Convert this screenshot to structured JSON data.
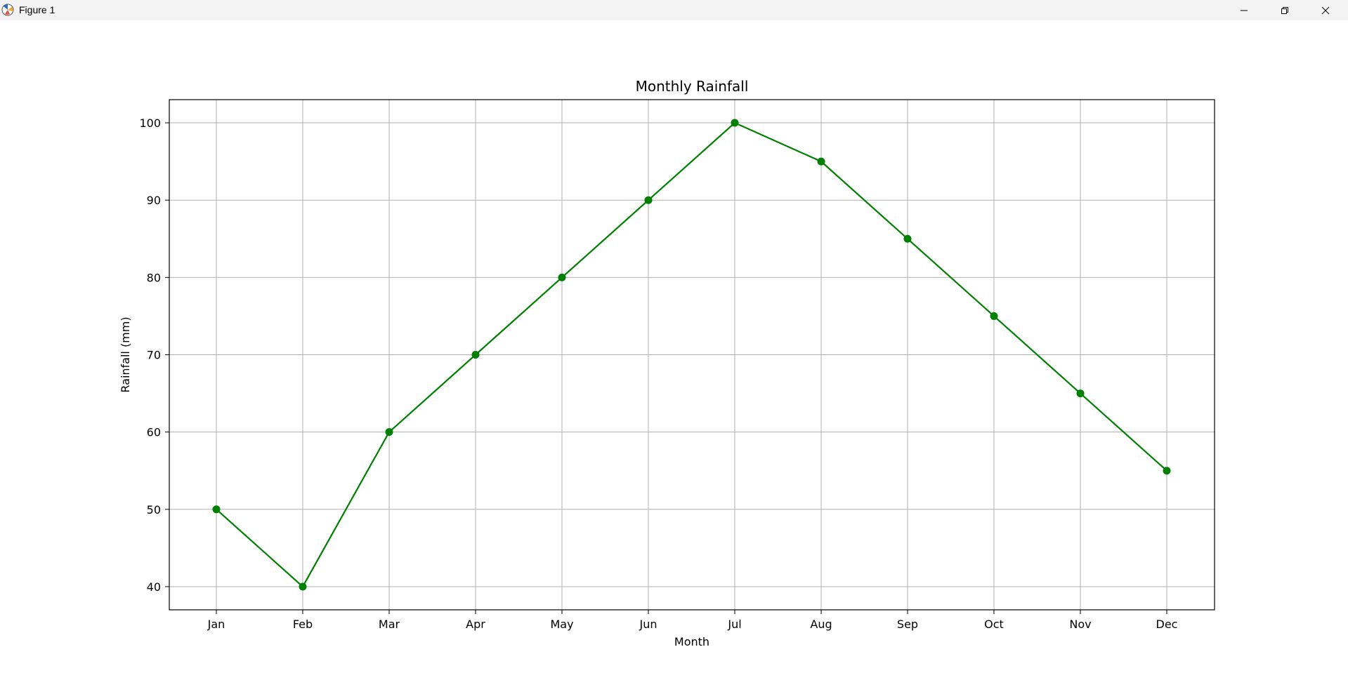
{
  "window": {
    "title": "Figure 1"
  },
  "icons": {
    "app": "matplotlib-figure-icon",
    "minimize": "minimize-icon",
    "maximize": "restore-icon",
    "close": "close-icon"
  },
  "colors": {
    "line": "#008000",
    "grid": "#b0b0b0",
    "axes": "#000000",
    "titlebar": "#f3f3f3"
  },
  "chart_data": {
    "type": "line",
    "title": "Monthly Rainfall",
    "xlabel": "Month",
    "ylabel": "Rainfall (mm)",
    "categories": [
      "Jan",
      "Feb",
      "Mar",
      "Apr",
      "May",
      "Jun",
      "Jul",
      "Aug",
      "Sep",
      "Oct",
      "Nov",
      "Dec"
    ],
    "series": [
      {
        "values": [
          50,
          40,
          60,
          70,
          80,
          90,
          100,
          95,
          85,
          75,
          65,
          55
        ],
        "color": "#008000",
        "marker": "circle"
      }
    ],
    "ylim": [
      37,
      103
    ],
    "yticks": [
      40,
      50,
      60,
      70,
      80,
      90,
      100
    ],
    "grid": true,
    "legend": "none"
  }
}
